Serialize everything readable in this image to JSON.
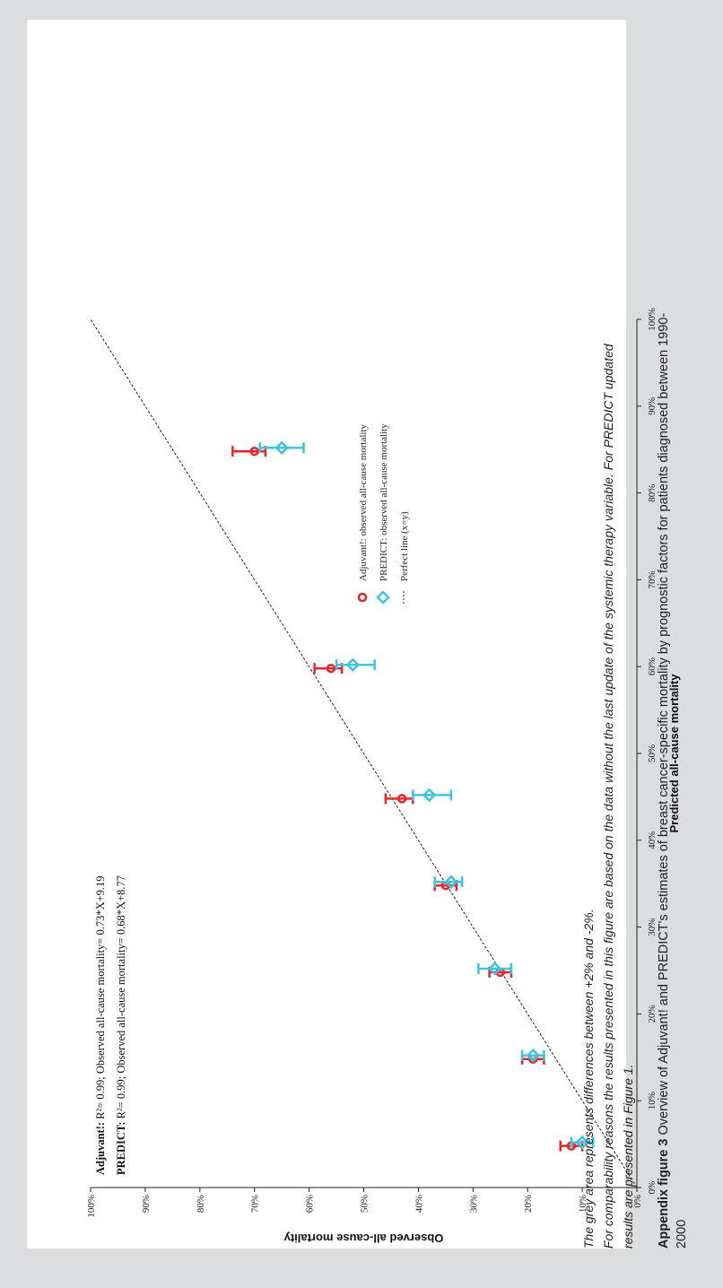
{
  "chart_data": {
    "type": "scatter",
    "title": "",
    "xlabel": "Predicted all-cause mortality",
    "ylabel": "Observed all-cause mortality",
    "xlim": [
      0,
      100
    ],
    "ylim": [
      0,
      100
    ],
    "x_ticks": [
      "0%",
      "10%",
      "20%",
      "30%",
      "40%",
      "50%",
      "60%",
      "70%",
      "80%",
      "90%",
      "100%"
    ],
    "y_ticks": [
      "0%",
      "10%",
      "20%",
      "30%",
      "40%",
      "50%",
      "60%",
      "70%",
      "80%",
      "90%",
      "100%"
    ],
    "grid": false,
    "legend_position": "right",
    "series": [
      {
        "name": "Adjuvant!: observed all-cause mortality",
        "color": "#e8252a",
        "marker": "circle",
        "x": [
          5,
          15,
          25,
          35,
          45,
          60,
          85
        ],
        "y": [
          12,
          19,
          25,
          35,
          43,
          56,
          70
        ],
        "err_low": [
          10,
          17,
          23,
          33,
          41,
          54,
          68
        ],
        "err_high": [
          14,
          21,
          27,
          37,
          46,
          59,
          74
        ]
      },
      {
        "name": "PREDICT: observed all-cause mortality",
        "color": "#3fc4e0",
        "marker": "diamond",
        "x": [
          5,
          15,
          25,
          35,
          45,
          60,
          85
        ],
        "y": [
          10,
          19,
          26,
          34,
          38,
          52,
          65
        ],
        "err_low": [
          8,
          17,
          23,
          32,
          34,
          48,
          61
        ],
        "err_high": [
          12,
          21,
          29,
          37,
          41,
          55,
          69
        ]
      }
    ],
    "reference_line": {
      "name": "Perfect line (x=y)",
      "color": "#222222"
    },
    "annotations": [
      {
        "bold": "Adjuvant!:",
        "text": "R²= 0.99; Observed all-cause mortality= 0.73*X+9.19"
      },
      {
        "bold": "PREDICT:",
        "text": "R²= 0.99; Observed all-cause mortality= 0.68*X+8.77"
      }
    ]
  },
  "notes": {
    "line1": "The grey area represents differences between +2% and -2%.",
    "line2": "For comparability reasons the results presented in this figure are based on the data without the last update of the systemic therapy variable. For PREDICT updated",
    "line3": "results are presented in Figure 1."
  },
  "caption": {
    "label": "Appendix figure 3",
    "text": " Overview of Adjuvant! and PREDICT's estimates of breast cancer-specific mortality by prognostic factors for patients diagnosed between 1990-",
    "text2": "2000"
  }
}
